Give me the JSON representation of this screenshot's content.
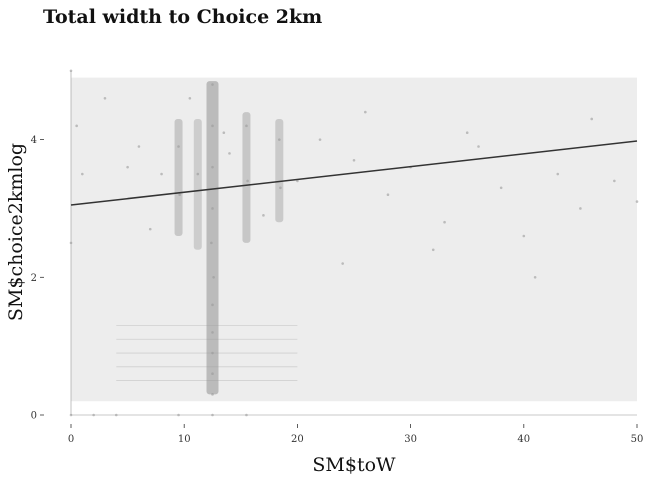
{
  "chart_data": {
    "type": "scatter",
    "title": "Total width to Choice 2km",
    "xlabel": "SM$toW",
    "ylabel": "SM$choice2kmlog",
    "xlim": [
      0,
      50
    ],
    "ylim": [
      0,
      5.2
    ],
    "x_ticks": [
      "0",
      "10",
      "20",
      "30",
      "40",
      "50"
    ],
    "y_ticks": [
      "0",
      "2",
      "4"
    ],
    "grid": false,
    "legend": "none",
    "point_color": "#9a9a9a",
    "line_color": "#333333",
    "series": [
      {
        "type": "points",
        "x": [
          12.5,
          12.5,
          12.5,
          12.5,
          12.4,
          12.6,
          9.5,
          9.6,
          11.2,
          15.5,
          15.6,
          18.4,
          18.5,
          12.5,
          12.5,
          12.5,
          12.5,
          12.5,
          14,
          8,
          6,
          5,
          10.5,
          13.5,
          17,
          20,
          22,
          25,
          28,
          30,
          33,
          35,
          38,
          40,
          43,
          45,
          48,
          50,
          24,
          26,
          32,
          36,
          41,
          46,
          7,
          3,
          1,
          0.5,
          0,
          0,
          0,
          2,
          4,
          12.5,
          15.5,
          9.5
        ],
        "y": [
          4.8,
          4.2,
          3.6,
          3.0,
          2.5,
          2.0,
          3.9,
          3.2,
          3.5,
          4.2,
          3.4,
          4.0,
          3.3,
          1.6,
          1.2,
          0.9,
          0.6,
          0.3,
          3.8,
          3.5,
          3.9,
          3.6,
          4.6,
          4.1,
          2.9,
          3.4,
          4.0,
          3.7,
          3.2,
          3.6,
          2.8,
          4.1,
          3.3,
          2.6,
          3.5,
          3.0,
          3.4,
          3.1,
          2.2,
          4.4,
          2.4,
          3.9,
          2.0,
          4.3,
          2.7,
          4.6,
          3.5,
          4.2,
          5.0,
          2.5,
          0.0,
          0.0,
          0.0,
          0.0,
          0.0,
          0.0
        ]
      },
      {
        "type": "regression_line",
        "x": [
          0,
          50
        ],
        "y": [
          3.05,
          3.98
        ]
      }
    ]
  }
}
